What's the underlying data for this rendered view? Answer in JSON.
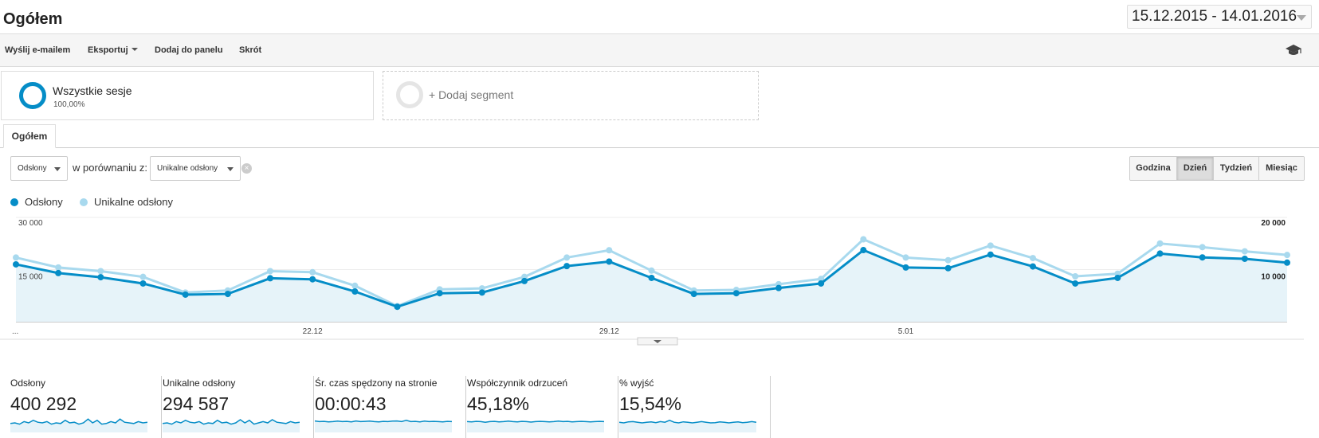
{
  "header": {
    "title": "Ogółem",
    "date_range": "15.12.2015 - 14.01.2016"
  },
  "toolbar": {
    "items": [
      "Wyślij e-mailem",
      "Eksportuj",
      "Dodaj do panelu",
      "Skrót"
    ],
    "icon": "graduation-cap-icon"
  },
  "segments": {
    "active": {
      "title": "Wszystkie sesje",
      "percent": "100,00%"
    },
    "add_label": "+ Dodaj segment"
  },
  "tabs": [
    "Ogółem"
  ],
  "controls": {
    "metric1": "Odsłony",
    "compare_text": "w porównaniu z:",
    "metric2": "Unikalne odsłony",
    "granularity": [
      "Godzina",
      "Dzień",
      "Tydzień",
      "Miesiąc"
    ],
    "granularity_selected": "Dzień"
  },
  "chart_data": {
    "type": "line",
    "series": [
      {
        "name": "Odsłony",
        "color": "#058dc7",
        "axis": "left",
        "values": [
          16500,
          14000,
          12800,
          11000,
          7800,
          8000,
          12500,
          12200,
          8700,
          4300,
          8200,
          8400,
          11700,
          16000,
          17300,
          12600,
          8000,
          8200,
          9700,
          11000,
          20600,
          15600,
          15400,
          19300,
          15900,
          11000,
          12600,
          19600,
          18500,
          18100,
          17000
        ]
      },
      {
        "name": "Unikalne odsłony",
        "color": "#a8d9ee",
        "axis": "right",
        "values": [
          12300,
          10400,
          9700,
          8600,
          5600,
          6000,
          9700,
          9500,
          6900,
          3000,
          6200,
          6400,
          8600,
          12300,
          13700,
          9800,
          6000,
          6100,
          7200,
          8200,
          15800,
          12300,
          11800,
          14600,
          12200,
          8700,
          9200,
          15000,
          14300,
          13500,
          12800
        ]
      }
    ],
    "x_tick_labels": [
      "...",
      "22.12",
      "29.12",
      "5.01"
    ],
    "y_left_ticks": [
      "30 000",
      "15 000"
    ],
    "y_left_range": [
      0,
      30000
    ],
    "y_right_ticks": [
      "20 000",
      "10 000"
    ],
    "y_right_range": [
      0,
      20000
    ],
    "grid": true,
    "legend": "top-left"
  },
  "scorecards": [
    {
      "label": "Odsłony",
      "value": "400 292",
      "spark": [
        0.55,
        0.5,
        0.6,
        0.4,
        0.5,
        0.3,
        0.45,
        0.5,
        0.4,
        0.6,
        0.5,
        0.55,
        0.3,
        0.5,
        0.45,
        0.6,
        0.5,
        0.2,
        0.5,
        0.3,
        0.6,
        0.55,
        0.4,
        0.5,
        0.2,
        0.45,
        0.5,
        0.55,
        0.4,
        0.5,
        0.45
      ]
    },
    {
      "label": "Unikalne odsłony",
      "value": "294 587",
      "spark": [
        0.55,
        0.5,
        0.6,
        0.4,
        0.5,
        0.3,
        0.45,
        0.5,
        0.4,
        0.6,
        0.5,
        0.55,
        0.3,
        0.5,
        0.45,
        0.6,
        0.5,
        0.25,
        0.5,
        0.3,
        0.6,
        0.5,
        0.4,
        0.5,
        0.25,
        0.45,
        0.5,
        0.55,
        0.4,
        0.5,
        0.45
      ]
    },
    {
      "label": "Śr. czas spędzony na stronie",
      "value": "00:00:43",
      "spark": [
        0.35,
        0.4,
        0.38,
        0.42,
        0.4,
        0.36,
        0.4,
        0.38,
        0.42,
        0.35,
        0.4,
        0.38,
        0.36,
        0.4,
        0.42,
        0.38,
        0.4,
        0.36,
        0.35,
        0.4,
        0.3,
        0.4,
        0.38,
        0.42,
        0.36,
        0.4,
        0.38,
        0.4,
        0.42,
        0.38,
        0.4
      ]
    },
    {
      "label": "Współczynnik odrzuceń",
      "value": "45,18%",
      "spark": [
        0.4,
        0.42,
        0.38,
        0.4,
        0.45,
        0.4,
        0.38,
        0.42,
        0.4,
        0.36,
        0.4,
        0.42,
        0.38,
        0.4,
        0.44,
        0.4,
        0.38,
        0.4,
        0.42,
        0.4,
        0.36,
        0.4,
        0.38,
        0.42,
        0.4,
        0.38,
        0.4,
        0.42,
        0.4,
        0.38,
        0.4
      ]
    },
    {
      "label": "% wyjść",
      "value": "15,54%",
      "spark": [
        0.45,
        0.5,
        0.42,
        0.4,
        0.45,
        0.5,
        0.45,
        0.42,
        0.48,
        0.4,
        0.45,
        0.3,
        0.45,
        0.5,
        0.42,
        0.45,
        0.5,
        0.45,
        0.4,
        0.45,
        0.5,
        0.48,
        0.42,
        0.45,
        0.5,
        0.45,
        0.42,
        0.48,
        0.45,
        0.4,
        0.45
      ]
    }
  ]
}
